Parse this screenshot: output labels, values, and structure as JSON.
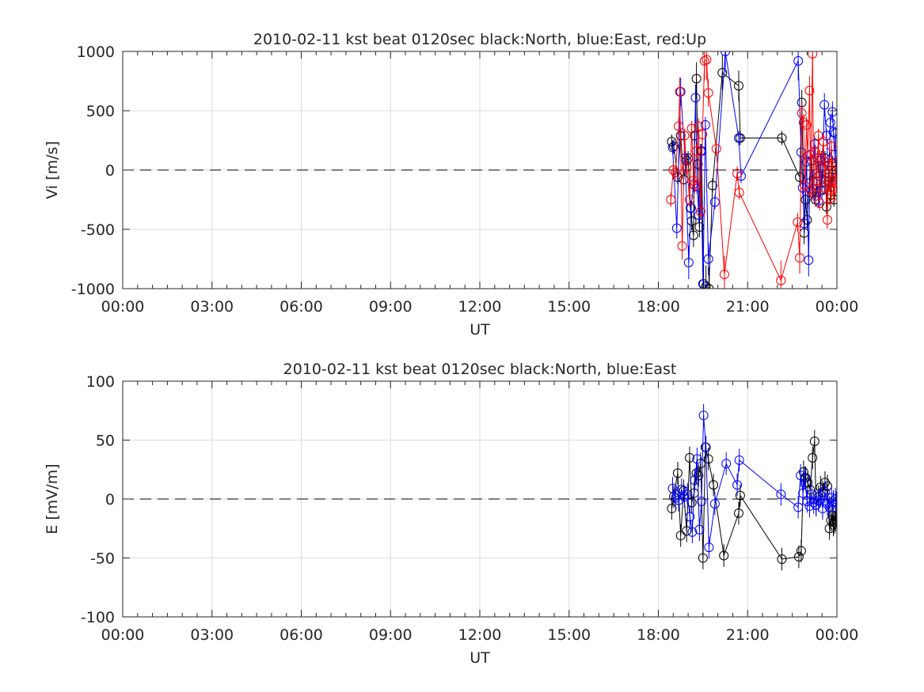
{
  "chart_data": [
    {
      "type": "scatter",
      "title": "2010-02-11 kst beat 0120sec black:North, blue:East, red:Up",
      "xlabel": "UT",
      "ylabel": "Vi [m/s]",
      "xlim": [
        0,
        24
      ],
      "ylim": [
        -1000,
        1000
      ],
      "xticks": [
        0,
        3,
        6,
        9,
        12,
        15,
        18,
        21,
        24
      ],
      "xtick_labels": [
        "00:00",
        "03:00",
        "06:00",
        "09:00",
        "12:00",
        "15:00",
        "18:00",
        "21:00",
        "00:00"
      ],
      "yticks": [
        -1000,
        -500,
        0,
        500,
        1000
      ],
      "ytick_labels": [
        "-1000",
        "-500",
        "0",
        "500",
        "1000"
      ],
      "grid": true,
      "zero_line": true,
      "series": [
        {
          "name": "North",
          "color": "#000000",
          "x": [
            18.45,
            18.52,
            18.65,
            18.75,
            18.85,
            18.95,
            19.0,
            19.08,
            19.12,
            19.18,
            19.22,
            19.28,
            19.33,
            19.38,
            19.45,
            19.52,
            19.6,
            19.7,
            19.82,
            20.15,
            20.7,
            20.75,
            22.15,
            22.75,
            22.82,
            22.9,
            22.95,
            23.0,
            23.08,
            23.15,
            23.2,
            23.28,
            23.35,
            23.4,
            23.45,
            23.52,
            23.6,
            23.65,
            23.7,
            23.75,
            23.8,
            23.85,
            23.9,
            23.95,
            23.98
          ],
          "y": [
            240,
            200,
            -60,
            290,
            -80,
            80,
            100,
            -320,
            -430,
            -550,
            290,
            770,
            50,
            -480,
            160,
            -960,
            -980,
            -1000,
            -130,
            820,
            710,
            270,
            270,
            -60,
            570,
            -530,
            -250,
            -420,
            -110,
            80,
            -160,
            -250,
            100,
            -50,
            -170,
            20,
            100,
            -310,
            -100,
            -60,
            -210,
            60,
            -250,
            30,
            0
          ]
        },
        {
          "name": "East",
          "color": "#0000ff",
          "x": [
            18.48,
            18.62,
            18.75,
            18.9,
            19.02,
            19.1,
            19.18,
            19.25,
            19.3,
            19.36,
            19.42,
            19.5,
            19.58,
            19.68,
            19.9,
            20.25,
            20.7,
            20.78,
            22.7,
            22.8,
            22.85,
            22.9,
            22.98,
            23.05,
            23.1,
            23.18,
            23.25,
            23.32,
            23.38,
            23.45,
            23.5,
            23.58,
            23.65,
            23.72,
            23.78,
            23.85,
            23.88,
            23.92,
            23.95,
            23.98
          ],
          "y": [
            190,
            -490,
            660,
            100,
            -780,
            -320,
            -120,
            610,
            -140,
            -380,
            160,
            -960,
            380,
            -750,
            -270,
            1000,
            270,
            -50,
            920,
            150,
            -150,
            -450,
            70,
            -760,
            130,
            -190,
            220,
            -30,
            -260,
            80,
            -170,
            550,
            290,
            -90,
            400,
            490,
            320,
            130,
            310,
            -60
          ]
        },
        {
          "name": "Up",
          "color": "#ff0000",
          "x": [
            18.42,
            18.5,
            18.58,
            18.68,
            18.72,
            18.8,
            18.88,
            18.95,
            19.05,
            19.12,
            19.18,
            19.22,
            19.28,
            19.35,
            19.42,
            19.48,
            19.55,
            19.62,
            19.68,
            19.95,
            20.22,
            20.65,
            20.72,
            22.12,
            22.68,
            22.75,
            22.82,
            22.88,
            22.92,
            22.98,
            23.02,
            23.08,
            23.12,
            23.18,
            23.22,
            23.28,
            23.32,
            23.38,
            23.42,
            23.48,
            23.55,
            23.58,
            23.62,
            23.68,
            23.72,
            23.78,
            23.82,
            23.85,
            23.88,
            23.92,
            23.95,
            23.98
          ],
          "y": [
            -250,
            0,
            -20,
            370,
            660,
            -640,
            290,
            20,
            -250,
            350,
            -90,
            -130,
            160,
            370,
            -350,
            300,
            920,
            930,
            650,
            180,
            -880,
            -30,
            -190,
            -930,
            -440,
            -740,
            480,
            400,
            -130,
            380,
            120,
            670,
            -170,
            980,
            -200,
            150,
            -90,
            290,
            -280,
            100,
            240,
            -150,
            70,
            -420,
            40,
            -240,
            200,
            -90,
            -160,
            -210,
            50,
            -110
          ]
        }
      ]
    },
    {
      "type": "scatter",
      "title": "2010-02-11 kst beat 0120sec black:North, blue:East",
      "xlabel": "UT",
      "ylabel": "E [mV/m]",
      "xlim": [
        0,
        24
      ],
      "ylim": [
        -100,
        100
      ],
      "xticks": [
        0,
        3,
        6,
        9,
        12,
        15,
        18,
        21,
        24
      ],
      "xtick_labels": [
        "00:00",
        "03:00",
        "06:00",
        "09:00",
        "12:00",
        "15:00",
        "18:00",
        "21:00",
        "00:00"
      ],
      "yticks": [
        -100,
        -50,
        0,
        50,
        100
      ],
      "ytick_labels": [
        "-100",
        "-50",
        "0",
        "50",
        "100"
      ],
      "grid": true,
      "zero_line": true,
      "series": [
        {
          "name": "North",
          "color": "#000000",
          "x": [
            18.45,
            18.52,
            18.65,
            18.75,
            18.85,
            18.95,
            19.05,
            19.12,
            19.2,
            19.28,
            19.35,
            19.42,
            19.5,
            19.58,
            19.68,
            19.85,
            20.2,
            20.7,
            20.75,
            22.15,
            22.72,
            22.8,
            22.88,
            22.95,
            23.02,
            23.1,
            23.18,
            23.25,
            23.3,
            23.38,
            23.45,
            23.52,
            23.6,
            23.68,
            23.75,
            23.8,
            23.85,
            23.88,
            23.92,
            23.95,
            23.98
          ],
          "y": [
            -8,
            2,
            22,
            -31,
            7,
            -27,
            35,
            -3,
            5,
            22,
            20,
            30,
            -50,
            44,
            34,
            12,
            -48,
            -12,
            3,
            -51,
            -49,
            -44,
            23,
            18,
            14,
            8,
            35,
            49,
            -5,
            2,
            10,
            6,
            14,
            11,
            -25,
            -18,
            -14,
            -22,
            -20,
            -18,
            -14
          ]
        },
        {
          "name": "East",
          "color": "#0000ff",
          "x": [
            18.48,
            18.58,
            18.68,
            18.78,
            18.88,
            18.98,
            19.06,
            19.14,
            19.22,
            19.3,
            19.38,
            19.45,
            19.52,
            19.6,
            19.7,
            19.9,
            20.28,
            20.65,
            20.72,
            22.12,
            22.7,
            22.78,
            22.86,
            22.92,
            23.0,
            23.08,
            23.15,
            23.22,
            23.3,
            23.38,
            23.45,
            23.52,
            23.6,
            23.68,
            23.75,
            23.82,
            23.88,
            23.95,
            23.98
          ],
          "y": [
            9,
            1,
            -1,
            8,
            2,
            4,
            -15,
            -28,
            16,
            34,
            -26,
            -2,
            71,
            44,
            -41,
            -4,
            30,
            12,
            33,
            4,
            -7,
            20,
            5,
            18,
            -2,
            -6,
            4,
            -3,
            -5,
            -1,
            3,
            -8,
            6,
            -4,
            -7,
            1,
            -2,
            0,
            -3
          ]
        }
      ]
    }
  ]
}
